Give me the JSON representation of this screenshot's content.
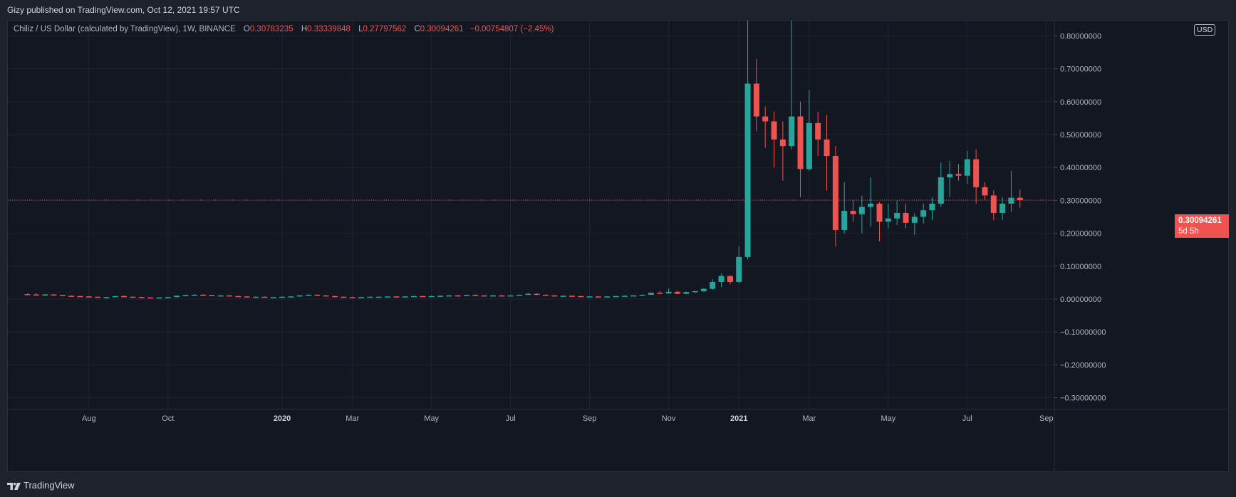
{
  "header": {
    "publish_line": "Gizy published on TradingView.com, Oct 12, 2021 19:57 UTC"
  },
  "legend": {
    "symbol": "Chiliz / US Dollar (calculated by TradingView), 1W, BINANCE",
    "o_key": "O",
    "o_val": "0.30783235",
    "h_key": "H",
    "h_val": "0.33339848",
    "l_key": "L",
    "l_val": "0.27797562",
    "c_key": "C",
    "c_val": "0.30094261",
    "change": "−0.00754807 (−2.45%)"
  },
  "currency": "USD",
  "price_tag": {
    "price": "0.30094261",
    "countdown": "5d 5h"
  },
  "footer": {
    "brand": "TradingView"
  },
  "colors": {
    "up": "#26a69a",
    "down": "#ef5350",
    "background": "#131722",
    "grid": "#1f2430",
    "text": "#b2b5be"
  },
  "chart_data": {
    "type": "candlestick",
    "symbol": "Chiliz / US Dollar",
    "interval": "1W",
    "exchange": "BINANCE",
    "y_ticks": [
      "0.80000000",
      "0.70000000",
      "0.60000000",
      "0.50000000",
      "0.40000000",
      "0.30000000",
      "0.20000000",
      "0.10000000",
      "0.00000000",
      "−0.10000000",
      "−0.20000000",
      "−0.30000000"
    ],
    "x_ticks": [
      {
        "label": "Aug",
        "index": 7,
        "bold": false
      },
      {
        "label": "Oct",
        "index": 16,
        "bold": false
      },
      {
        "label": "2020",
        "index": 29,
        "bold": true
      },
      {
        "label": "Mar",
        "index": 37,
        "bold": false
      },
      {
        "label": "May",
        "index": 46,
        "bold": false
      },
      {
        "label": "Jul",
        "index": 55,
        "bold": false
      },
      {
        "label": "Sep",
        "index": 64,
        "bold": false
      },
      {
        "label": "Nov",
        "index": 73,
        "bold": false
      },
      {
        "label": "2021",
        "index": 81,
        "bold": true
      },
      {
        "label": "Mar",
        "index": 89,
        "bold": false
      },
      {
        "label": "May",
        "index": 98,
        "bold": false
      },
      {
        "label": "Jul",
        "index": 107,
        "bold": false
      },
      {
        "label": "Sep",
        "index": 116,
        "bold": false
      }
    ],
    "current_price": 0.30094261,
    "ylim": [
      -0.33,
      0.86
    ],
    "candles": [
      [
        0.015,
        0.017,
        0.012,
        0.014
      ],
      [
        0.014,
        0.018,
        0.011,
        0.013
      ],
      [
        0.013,
        0.015,
        0.011,
        0.014
      ],
      [
        0.014,
        0.015,
        0.011,
        0.012
      ],
      [
        0.012,
        0.013,
        0.009,
        0.01
      ],
      [
        0.01,
        0.011,
        0.008,
        0.009
      ],
      [
        0.009,
        0.01,
        0.007,
        0.008
      ],
      [
        0.008,
        0.009,
        0.006,
        0.007
      ],
      [
        0.007,
        0.008,
        0.005,
        0.006
      ],
      [
        0.006,
        0.007,
        0.005,
        0.006
      ],
      [
        0.006,
        0.01,
        0.005,
        0.009
      ],
      [
        0.009,
        0.011,
        0.006,
        0.007
      ],
      [
        0.007,
        0.008,
        0.005,
        0.006
      ],
      [
        0.006,
        0.007,
        0.004,
        0.005
      ],
      [
        0.005,
        0.006,
        0.003,
        0.004
      ],
      [
        0.004,
        0.005,
        0.003,
        0.005
      ],
      [
        0.005,
        0.007,
        0.004,
        0.006
      ],
      [
        0.006,
        0.011,
        0.005,
        0.01
      ],
      [
        0.01,
        0.013,
        0.008,
        0.012
      ],
      [
        0.012,
        0.015,
        0.01,
        0.013
      ],
      [
        0.013,
        0.015,
        0.011,
        0.012
      ],
      [
        0.012,
        0.013,
        0.009,
        0.01
      ],
      [
        0.01,
        0.012,
        0.008,
        0.011
      ],
      [
        0.011,
        0.012,
        0.008,
        0.009
      ],
      [
        0.009,
        0.01,
        0.007,
        0.008
      ],
      [
        0.008,
        0.009,
        0.006,
        0.007
      ],
      [
        0.007,
        0.008,
        0.006,
        0.007
      ],
      [
        0.007,
        0.008,
        0.005,
        0.006
      ],
      [
        0.006,
        0.007,
        0.005,
        0.006
      ],
      [
        0.006,
        0.008,
        0.005,
        0.007
      ],
      [
        0.007,
        0.009,
        0.006,
        0.008
      ],
      [
        0.008,
        0.012,
        0.007,
        0.011
      ],
      [
        0.011,
        0.015,
        0.01,
        0.013
      ],
      [
        0.013,
        0.014,
        0.01,
        0.011
      ],
      [
        0.011,
        0.012,
        0.008,
        0.009
      ],
      [
        0.009,
        0.01,
        0.006,
        0.007
      ],
      [
        0.007,
        0.008,
        0.005,
        0.006
      ],
      [
        0.006,
        0.007,
        0.004,
        0.005
      ],
      [
        0.005,
        0.007,
        0.004,
        0.006
      ],
      [
        0.006,
        0.008,
        0.005,
        0.007
      ],
      [
        0.007,
        0.008,
        0.006,
        0.007
      ],
      [
        0.007,
        0.009,
        0.006,
        0.008
      ],
      [
        0.008,
        0.009,
        0.006,
        0.007
      ],
      [
        0.007,
        0.009,
        0.006,
        0.008
      ],
      [
        0.008,
        0.01,
        0.007,
        0.009
      ],
      [
        0.009,
        0.01,
        0.007,
        0.008
      ],
      [
        0.008,
        0.01,
        0.007,
        0.009
      ],
      [
        0.009,
        0.011,
        0.008,
        0.01
      ],
      [
        0.01,
        0.012,
        0.009,
        0.011
      ],
      [
        0.011,
        0.013,
        0.009,
        0.01
      ],
      [
        0.01,
        0.013,
        0.009,
        0.012
      ],
      [
        0.012,
        0.014,
        0.01,
        0.011
      ],
      [
        0.011,
        0.012,
        0.009,
        0.01
      ],
      [
        0.01,
        0.012,
        0.009,
        0.011
      ],
      [
        0.011,
        0.013,
        0.009,
        0.01
      ],
      [
        0.01,
        0.012,
        0.009,
        0.011
      ],
      [
        0.011,
        0.014,
        0.01,
        0.013
      ],
      [
        0.013,
        0.018,
        0.012,
        0.016
      ],
      [
        0.016,
        0.018,
        0.012,
        0.013
      ],
      [
        0.013,
        0.014,
        0.01,
        0.011
      ],
      [
        0.011,
        0.012,
        0.008,
        0.009
      ],
      [
        0.009,
        0.011,
        0.008,
        0.01
      ],
      [
        0.01,
        0.011,
        0.008,
        0.009
      ],
      [
        0.009,
        0.01,
        0.007,
        0.008
      ],
      [
        0.008,
        0.009,
        0.007,
        0.008
      ],
      [
        0.008,
        0.009,
        0.006,
        0.007
      ],
      [
        0.007,
        0.009,
        0.006,
        0.008
      ],
      [
        0.008,
        0.01,
        0.007,
        0.009
      ],
      [
        0.009,
        0.011,
        0.008,
        0.01
      ],
      [
        0.01,
        0.012,
        0.009,
        0.011
      ],
      [
        0.011,
        0.014,
        0.01,
        0.013
      ],
      [
        0.013,
        0.02,
        0.012,
        0.019
      ],
      [
        0.019,
        0.024,
        0.015,
        0.017
      ],
      [
        0.017,
        0.032,
        0.016,
        0.022
      ],
      [
        0.022,
        0.025,
        0.014,
        0.016
      ],
      [
        0.016,
        0.023,
        0.015,
        0.021
      ],
      [
        0.021,
        0.026,
        0.018,
        0.024
      ],
      [
        0.024,
        0.034,
        0.021,
        0.031
      ],
      [
        0.031,
        0.06,
        0.028,
        0.052
      ],
      [
        0.052,
        0.078,
        0.036,
        0.07
      ],
      [
        0.07,
        0.072,
        0.045,
        0.052
      ],
      [
        0.052,
        0.16,
        0.048,
        0.128
      ],
      [
        0.128,
        0.87,
        0.12,
        0.655
      ],
      [
        0.655,
        0.73,
        0.51,
        0.555
      ],
      [
        0.555,
        0.585,
        0.46,
        0.54
      ],
      [
        0.54,
        0.57,
        0.4,
        0.485
      ],
      [
        0.485,
        0.54,
        0.36,
        0.465
      ],
      [
        0.465,
        0.87,
        0.455,
        0.555
      ],
      [
        0.555,
        0.6,
        0.31,
        0.395
      ],
      [
        0.395,
        0.635,
        0.39,
        0.535
      ],
      [
        0.535,
        0.57,
        0.435,
        0.485
      ],
      [
        0.485,
        0.56,
        0.33,
        0.435
      ],
      [
        0.435,
        0.465,
        0.16,
        0.21
      ],
      [
        0.21,
        0.355,
        0.2,
        0.268
      ],
      [
        0.268,
        0.3,
        0.235,
        0.258
      ],
      [
        0.258,
        0.315,
        0.2,
        0.28
      ],
      [
        0.28,
        0.37,
        0.22,
        0.29
      ],
      [
        0.29,
        0.295,
        0.175,
        0.235
      ],
      [
        0.235,
        0.29,
        0.215,
        0.245
      ],
      [
        0.245,
        0.3,
        0.225,
        0.262
      ],
      [
        0.262,
        0.29,
        0.215,
        0.232
      ],
      [
        0.232,
        0.26,
        0.195,
        0.25
      ],
      [
        0.25,
        0.29,
        0.23,
        0.27
      ],
      [
        0.27,
        0.31,
        0.24,
        0.29
      ],
      [
        0.29,
        0.415,
        0.28,
        0.37
      ],
      [
        0.37,
        0.42,
        0.31,
        0.38
      ],
      [
        0.38,
        0.41,
        0.36,
        0.375
      ],
      [
        0.375,
        0.45,
        0.35,
        0.425
      ],
      [
        0.425,
        0.455,
        0.29,
        0.34
      ],
      [
        0.34,
        0.355,
        0.3,
        0.315
      ],
      [
        0.315,
        0.33,
        0.24,
        0.262
      ],
      [
        0.262,
        0.31,
        0.24,
        0.29
      ],
      [
        0.29,
        0.39,
        0.265,
        0.308
      ],
      [
        0.308,
        0.333,
        0.278,
        0.301
      ]
    ]
  }
}
